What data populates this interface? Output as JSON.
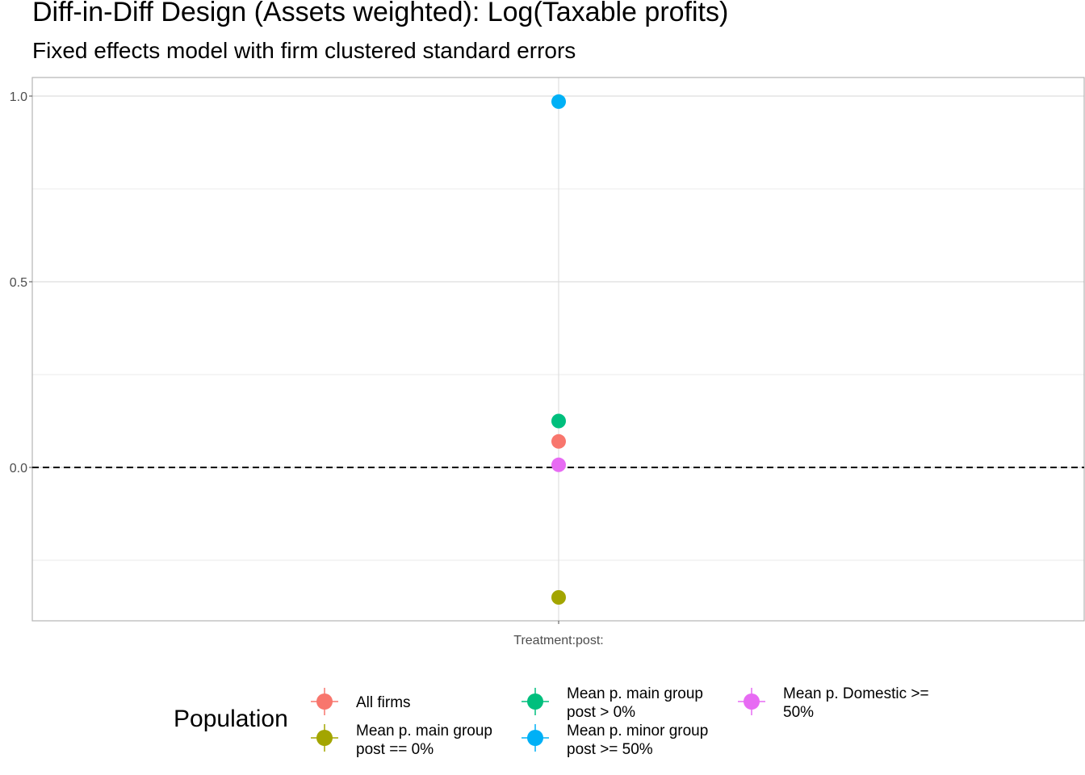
{
  "title": "Diff-in-Diff Design (Assets weighted): Log(Taxable profits)",
  "subtitle": "Fixed effects model with firm clustered standard errors",
  "chart_data": {
    "type": "scatter",
    "title": "Diff-in-Diff Design (Assets weighted): Log(Taxable profits)",
    "subtitle": "Fixed effects model with firm clustered standard errors",
    "xlabel": "",
    "ylabel": "",
    "categories": [
      "Treatment:post:"
    ],
    "ylim": [
      -0.41,
      1.05
    ],
    "yticks": [
      0.0,
      0.5,
      1.0
    ],
    "ytick_labels": [
      "0.0",
      "0.5",
      "1.0"
    ],
    "reference_line": {
      "y": 0,
      "style": "dashed",
      "color": "#000000"
    },
    "grid": true,
    "legend": {
      "title": "Population",
      "position": "bottom"
    },
    "series": [
      {
        "name": "All firms",
        "color": "#F8766D",
        "values": [
          0.07
        ]
      },
      {
        "name": "Mean p. main group post == 0%",
        "color": "#A3A500",
        "values": [
          -0.35
        ]
      },
      {
        "name": "Mean p. main group post > 0%",
        "color": "#00BF7D",
        "values": [
          0.125
        ]
      },
      {
        "name": "Mean p. minor group post >= 50%",
        "color": "#00B0F6",
        "values": [
          0.985
        ]
      },
      {
        "name": "Mean p. Domestic >= 50%",
        "color": "#E76BF3",
        "values": [
          0.007
        ]
      }
    ]
  },
  "legend_labels": {
    "all_firms": "All firms",
    "main_zero_line1": "Mean p. main group",
    "main_zero_line2": "post == 0%",
    "main_pos_line1": "Mean p. main group",
    "main_pos_line2": "post > 0%",
    "minor_line1": "Mean p. minor group",
    "minor_line2": "post >= 50%",
    "domestic_line1": "Mean p. Domestic >=",
    "domestic_line2": "50%"
  }
}
